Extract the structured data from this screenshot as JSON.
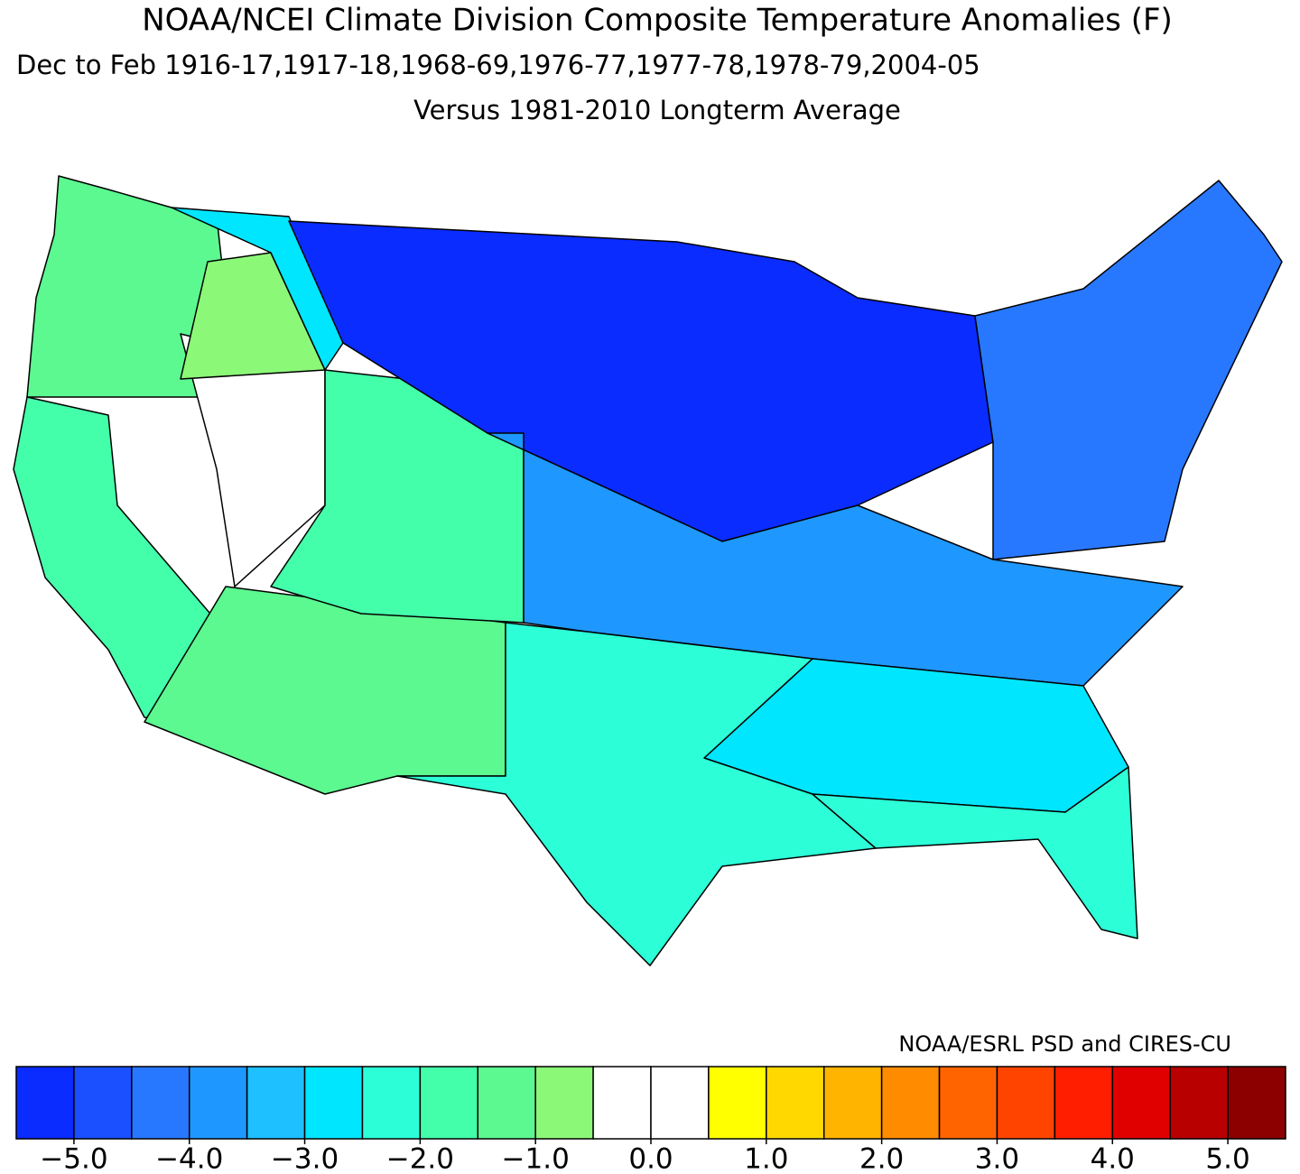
{
  "chart_data": {
    "type": "choropleth",
    "title": "NOAA/NCEI Climate Division Composite Temperature Anomalies (F)",
    "subtitle": "Dec to Feb  1916-17,1917-18,1968-69,1976-77,1977-78,1978-79,2004-05",
    "subtitle2": "Versus 1981-2010 Longterm Average",
    "credit": "NOAA/ESRL PSD and CIRES-CU",
    "colorbar": {
      "bounds": [
        -5.5,
        -5,
        -4.5,
        -4,
        -3.5,
        -3,
        -2.5,
        -2,
        -1.5,
        -1,
        -0.5,
        0,
        0.5,
        1,
        1.5,
        2,
        2.5,
        3,
        3.5,
        4,
        4.5,
        5,
        5.5
      ],
      "colors": [
        "#0a2cff",
        "#1a50ff",
        "#2878ff",
        "#1e98ff",
        "#1ec0ff",
        "#00e6ff",
        "#2cffd8",
        "#44ffaa",
        "#5cf890",
        "#8cf878",
        "#ffffff",
        "#ffffff",
        "#ffff00",
        "#ffd800",
        "#ffb400",
        "#ff8c00",
        "#ff6400",
        "#ff4400",
        "#ff1e00",
        "#e00000",
        "#b80000",
        "#8c0000"
      ],
      "ticks": [
        {
          "value": -5,
          "label": "−5.0"
        },
        {
          "value": -4,
          "label": "−4.0"
        },
        {
          "value": -3,
          "label": "−3.0"
        },
        {
          "value": -2,
          "label": "−2.0"
        },
        {
          "value": -1,
          "label": "−1.0"
        },
        {
          "value": 0,
          "label": "0.0"
        },
        {
          "value": 1,
          "label": "1.0"
        },
        {
          "value": 2,
          "label": "2.0"
        },
        {
          "value": 3,
          "label": "3.0"
        },
        {
          "value": 4,
          "label": "4.0"
        },
        {
          "value": 5,
          "label": "5.0"
        }
      ]
    },
    "regions": [
      -1.5,
      -2.0,
      -0.2,
      -1.0,
      -1.3,
      -1.8,
      -2.7,
      -5.2,
      -4.3,
      -3.8,
      -3.0,
      -2.4,
      -2.5
    ]
  }
}
